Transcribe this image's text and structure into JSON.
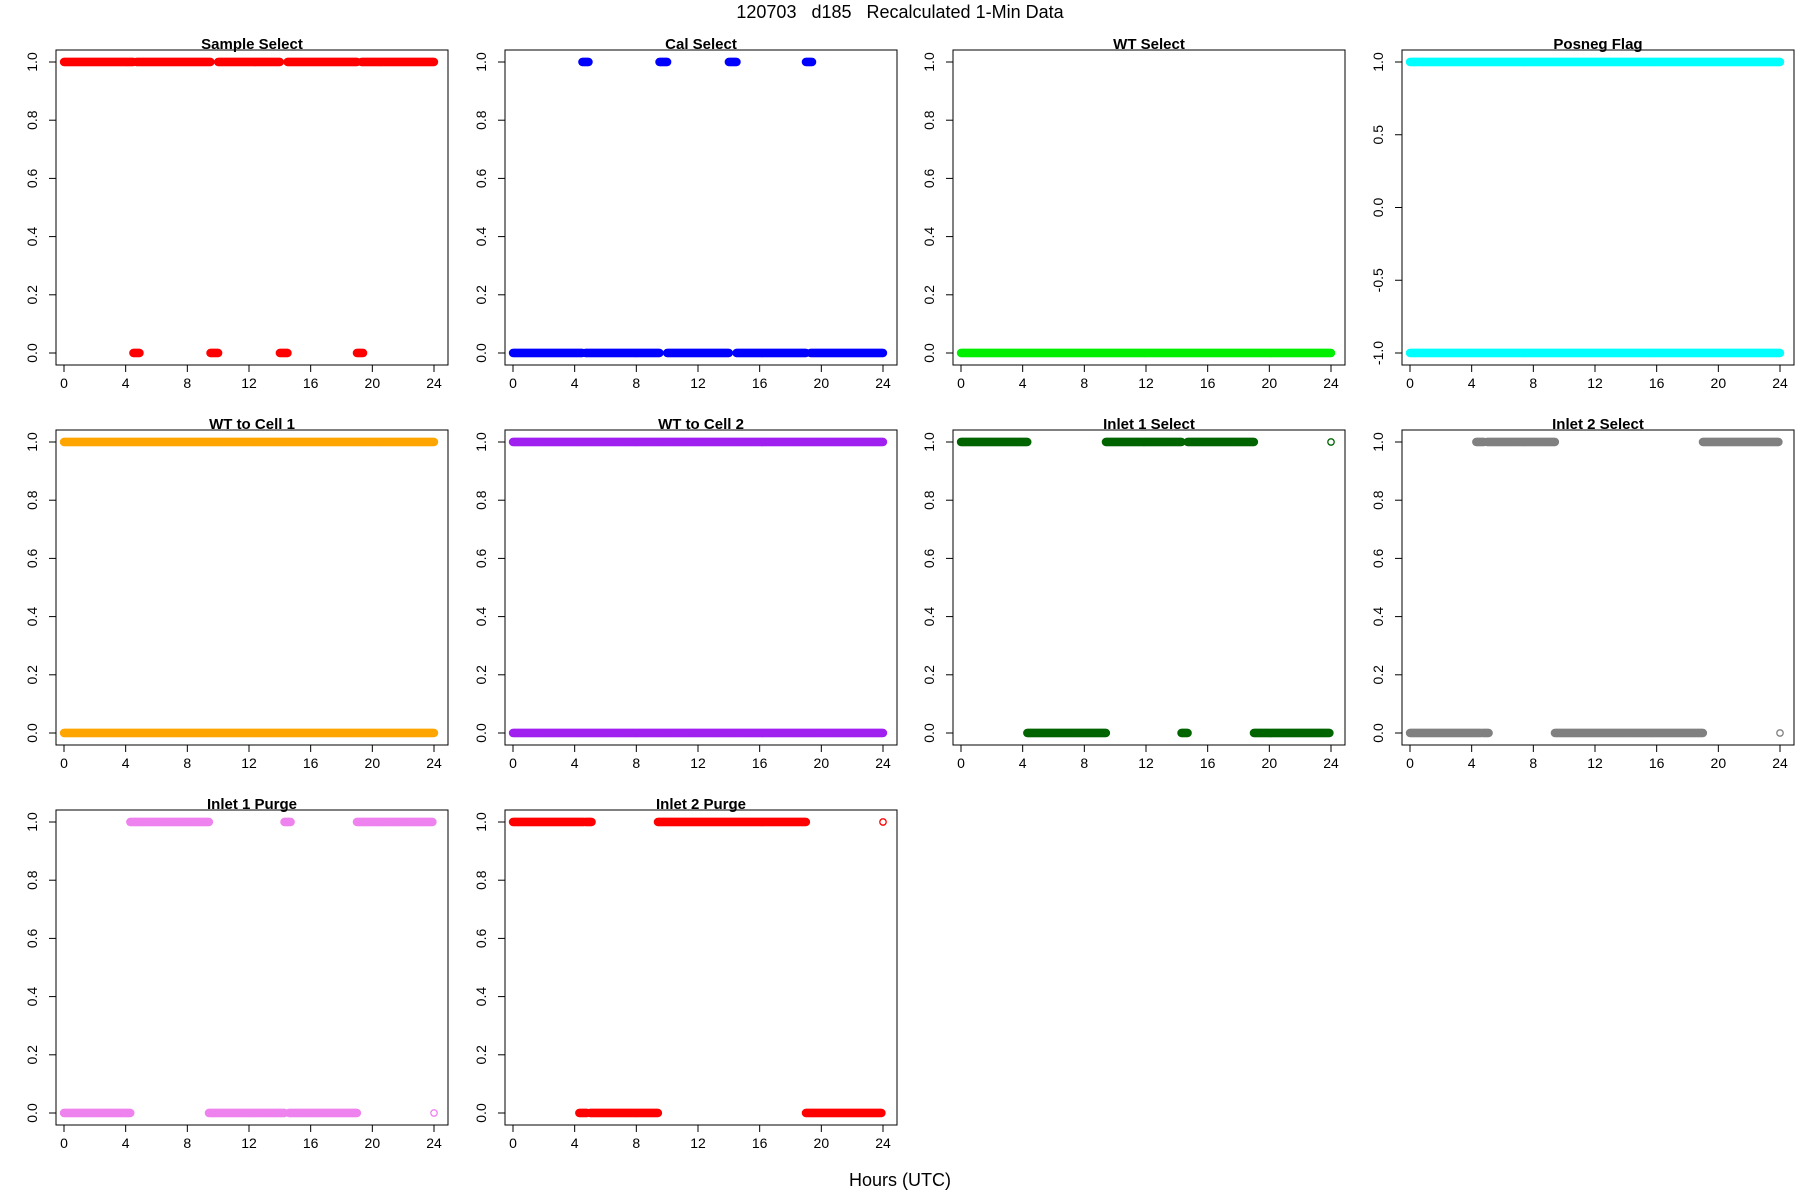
{
  "figure": {
    "title": "120703   d185   Recalculated 1-Min Data",
    "xlabel": "Hours (UTC)"
  },
  "chart_data": [
    {
      "type": "scatter",
      "title": "Sample Select",
      "color": "#ff0000",
      "xlim": [
        0,
        24
      ],
      "ylim": [
        0,
        1
      ],
      "xticks": [
        0,
        4,
        8,
        12,
        16,
        20,
        24
      ],
      "yticks": [
        "0.0",
        "0.2",
        "0.4",
        "0.6",
        "0.8",
        "1.0"
      ],
      "series": [
        {
          "y": 1,
          "ranges": [
            [
              0,
              4.5
            ],
            [
              4.7,
              9.5
            ],
            [
              10,
              14
            ],
            [
              14.5,
              19
            ],
            [
              19.3,
              24
            ]
          ]
        },
        {
          "y": 0,
          "ranges": [
            [
              4.5,
              4.9
            ],
            [
              9.5,
              10.0
            ],
            [
              14.0,
              14.5
            ],
            [
              19.0,
              19.4
            ]
          ]
        }
      ]
    },
    {
      "type": "scatter",
      "title": "Cal Select",
      "color": "#0000ff",
      "xlim": [
        0,
        24
      ],
      "ylim": [
        0,
        1
      ],
      "xticks": [
        0,
        4,
        8,
        12,
        16,
        20,
        24
      ],
      "yticks": [
        "0.0",
        "0.2",
        "0.4",
        "0.6",
        "0.8",
        "1.0"
      ],
      "series": [
        {
          "y": 1,
          "ranges": [
            [
              4.5,
              4.9
            ],
            [
              9.5,
              10.0
            ],
            [
              14.0,
              14.5
            ],
            [
              19.0,
              19.4
            ]
          ]
        },
        {
          "y": 0,
          "ranges": [
            [
              0,
              4.5
            ],
            [
              4.7,
              9.5
            ],
            [
              10,
              14
            ],
            [
              14.5,
              19
            ],
            [
              19.3,
              24
            ]
          ]
        }
      ]
    },
    {
      "type": "scatter",
      "title": "WT Select",
      "color": "#00ee00",
      "xlim": [
        0,
        24
      ],
      "ylim": [
        0,
        1
      ],
      "xticks": [
        0,
        4,
        8,
        12,
        16,
        20,
        24
      ],
      "yticks": [
        "0.0",
        "0.2",
        "0.4",
        "0.6",
        "0.8",
        "1.0"
      ],
      "series": [
        {
          "y": 0,
          "ranges": [
            [
              0,
              24
            ]
          ]
        }
      ]
    },
    {
      "type": "scatter",
      "title": "Posneg Flag",
      "color": "#00ffff",
      "xlim": [
        0,
        24
      ],
      "ylim": [
        -1,
        1
      ],
      "xticks": [
        0,
        4,
        8,
        12,
        16,
        20,
        24
      ],
      "yticks": [
        "-1.0",
        "-0.5",
        "0.0",
        "0.5",
        "1.0"
      ],
      "series": [
        {
          "y": 1,
          "ranges": [
            [
              0,
              24
            ]
          ]
        },
        {
          "y": -1,
          "ranges": [
            [
              0,
              24
            ]
          ]
        }
      ]
    },
    {
      "type": "scatter",
      "title": "WT to Cell 1",
      "color": "#ffa500",
      "xlim": [
        0,
        24
      ],
      "ylim": [
        0,
        1
      ],
      "xticks": [
        0,
        4,
        8,
        12,
        16,
        20,
        24
      ],
      "yticks": [
        "0.0",
        "0.2",
        "0.4",
        "0.6",
        "0.8",
        "1.0"
      ],
      "series": [
        {
          "y": 1,
          "ranges": [
            [
              0,
              24
            ]
          ]
        },
        {
          "y": 0,
          "ranges": [
            [
              0,
              24
            ]
          ]
        }
      ]
    },
    {
      "type": "scatter",
      "title": "WT to Cell 2",
      "color": "#a020f0",
      "xlim": [
        0,
        24
      ],
      "ylim": [
        0,
        1
      ],
      "xticks": [
        0,
        4,
        8,
        12,
        16,
        20,
        24
      ],
      "yticks": [
        "0.0",
        "0.2",
        "0.4",
        "0.6",
        "0.8",
        "1.0"
      ],
      "series": [
        {
          "y": 1,
          "ranges": [
            [
              0,
              24
            ]
          ]
        },
        {
          "y": 0,
          "ranges": [
            [
              0,
              24
            ]
          ]
        }
      ]
    },
    {
      "type": "scatter",
      "title": "Inlet 1 Select",
      "color": "#006400",
      "xlim": [
        0,
        24
      ],
      "ylim": [
        0,
        1
      ],
      "xticks": [
        0,
        4,
        8,
        12,
        16,
        20,
        24
      ],
      "yticks": [
        "0.0",
        "0.2",
        "0.4",
        "0.6",
        "0.8",
        "1.0"
      ],
      "series": [
        {
          "y": 1,
          "ranges": [
            [
              0,
              4.3
            ],
            [
              9.4,
              14.3
            ],
            [
              14.7,
              19
            ]
          ]
        },
        {
          "y": 0,
          "ranges": [
            [
              4.3,
              9.4
            ],
            [
              14.3,
              14.7
            ],
            [
              19,
              23.9
            ]
          ]
        }
      ],
      "open_points": [
        {
          "x": 24,
          "y": 1
        }
      ]
    },
    {
      "type": "scatter",
      "title": "Inlet 2 Select",
      "color": "#808080",
      "xlim": [
        0,
        24
      ],
      "ylim": [
        0,
        1
      ],
      "xticks": [
        0,
        4,
        8,
        12,
        16,
        20,
        24
      ],
      "yticks": [
        "0.0",
        "0.2",
        "0.4",
        "0.6",
        "0.8",
        "1.0"
      ],
      "series": [
        {
          "y": 1,
          "ranges": [
            [
              4.3,
              4.8
            ],
            [
              5.0,
              9.4
            ],
            [
              19,
              23.9
            ]
          ]
        },
        {
          "y": 0,
          "ranges": [
            [
              0,
              4.6
            ],
            [
              4.7,
              5.1
            ],
            [
              9.4,
              19
            ]
          ]
        }
      ],
      "open_points": [
        {
          "x": 24,
          "y": 0
        }
      ]
    },
    {
      "type": "scatter",
      "title": "Inlet 1 Purge",
      "color": "#ee82ee",
      "xlim": [
        0,
        24
      ],
      "ylim": [
        0,
        1
      ],
      "xticks": [
        0,
        4,
        8,
        12,
        16,
        20,
        24
      ],
      "yticks": [
        "0.0",
        "0.2",
        "0.4",
        "0.6",
        "0.8",
        "1.0"
      ],
      "series": [
        {
          "y": 1,
          "ranges": [
            [
              4.3,
              9.4
            ],
            [
              14.3,
              14.7
            ],
            [
              19,
              23.9
            ]
          ]
        },
        {
          "y": 0,
          "ranges": [
            [
              0,
              4.3
            ],
            [
              9.4,
              14.3
            ],
            [
              14.6,
              19
            ]
          ]
        }
      ],
      "open_points": [
        {
          "x": 24,
          "y": 0
        }
      ]
    },
    {
      "type": "scatter",
      "title": "Inlet 2 Purge",
      "color": "#ff0000",
      "xlim": [
        0,
        24
      ],
      "ylim": [
        0,
        1
      ],
      "xticks": [
        0,
        4,
        8,
        12,
        16,
        20,
        24
      ],
      "yticks": [
        "0.0",
        "0.2",
        "0.4",
        "0.6",
        "0.8",
        "1.0"
      ],
      "series": [
        {
          "y": 1,
          "ranges": [
            [
              0,
              4.6
            ],
            [
              4.7,
              5.1
            ],
            [
              9.4,
              19
            ]
          ]
        },
        {
          "y": 0,
          "ranges": [
            [
              4.3,
              4.8
            ],
            [
              5.0,
              9.4
            ],
            [
              19,
              23.9
            ]
          ]
        }
      ],
      "open_points": [
        {
          "x": 24,
          "y": 1
        }
      ]
    }
  ]
}
